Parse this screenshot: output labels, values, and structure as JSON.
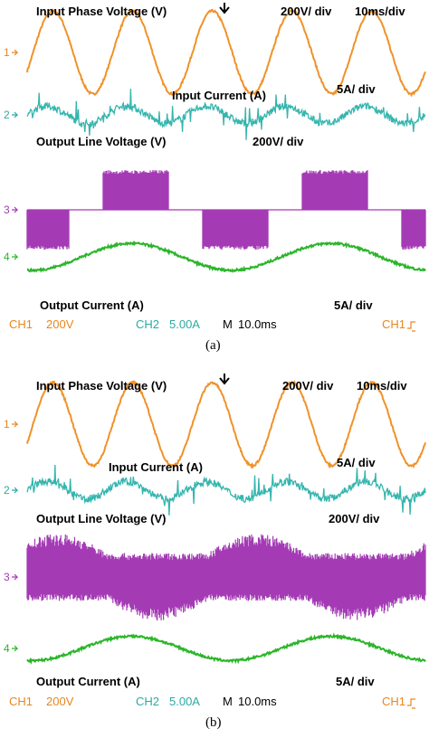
{
  "colors": {
    "ch1": "#F0922A",
    "ch2": "#35B5AE",
    "ch3": "#A43BB5",
    "ch4": "#2BB52A",
    "ch1_label": "#E8861E",
    "ch2_label": "#2EA8A4"
  },
  "panels": [
    {
      "caption": "(a)",
      "labels": {
        "input_phase_voltage": "Input Phase Voltage (V)",
        "scale_ch1": "200V/ div",
        "timebase": "10ms/div",
        "input_current": "Input Current (A)",
        "scale_ch2": "5A/ div",
        "output_line_voltage": "Output Line Voltage (V)",
        "scale_ch3": "200V/ div",
        "output_current": "Output Current (A)",
        "scale_ch4": "5A/ div"
      },
      "footer": {
        "ch1": "CH1",
        "ch1_scale": "200V",
        "ch2": "CH2",
        "ch2_scale": "5.00A",
        "mode": "M",
        "timebase": "10.0ms",
        "trigger_ch": "CH1",
        "trigger_icon": "rising-edge-icon"
      }
    },
    {
      "caption": "(b)",
      "labels": {
        "input_phase_voltage": "Input Phase Voltage (V)",
        "scale_ch1": "200V/ div",
        "timebase": "10ms/div",
        "input_current": "Input Current (A)",
        "scale_ch2": "5A/ div",
        "output_line_voltage": "Output Line Voltage (V)",
        "scale_ch3": "200V/ div",
        "output_current": "Output Current (A)",
        "scale_ch4": "5A/ div"
      },
      "footer": {
        "ch1": "CH1",
        "ch1_scale": "200V",
        "ch2": "CH2",
        "ch2_scale": "5.00A",
        "mode": "M",
        "timebase": "10.0ms",
        "trigger_ch": "CH1",
        "trigger_icon": "rising-edge-icon"
      }
    }
  ],
  "channel_markers": [
    "1",
    "2",
    "3",
    "4"
  ],
  "chart_data": [
    {
      "type": "line",
      "panel": "(a)",
      "x_unit": "ms",
      "time_per_div": 10,
      "divisions": 10,
      "xlim": [
        0,
        100
      ],
      "series": [
        {
          "name": "Input Phase Voltage (V)",
          "channel": 1,
          "shape": "sine",
          "frequency_hz": 50,
          "amplitude_div": 1.7,
          "volts_per_div": 200
        },
        {
          "name": "Input Current (A)",
          "channel": 2,
          "shape": "sine_noisy",
          "frequency_hz": 50,
          "amplitude_div": 0.35,
          "amps_per_div": 5
        },
        {
          "name": "Output Line Voltage (V)",
          "channel": 3,
          "shape": "six_step_pwm",
          "frequency_hz": 20,
          "amplitude_div": 1.6,
          "volts_per_div": 200
        },
        {
          "name": "Output Current (A)",
          "channel": 4,
          "shape": "sine",
          "frequency_hz": 20,
          "amplitude_div": 0.55,
          "amps_per_div": 5
        }
      ]
    },
    {
      "type": "line",
      "panel": "(b)",
      "x_unit": "ms",
      "time_per_div": 10,
      "divisions": 10,
      "xlim": [
        0,
        100
      ],
      "series": [
        {
          "name": "Input Phase Voltage (V)",
          "channel": 1,
          "shape": "sine",
          "frequency_hz": 50,
          "amplitude_div": 1.7,
          "volts_per_div": 200
        },
        {
          "name": "Input Current (A)",
          "channel": 2,
          "shape": "sine_noisy",
          "frequency_hz": 50,
          "amplitude_div": 0.35,
          "amps_per_div": 5
        },
        {
          "name": "Output Line Voltage (V)",
          "channel": 3,
          "shape": "svm_pwm",
          "frequency_hz": 20,
          "amplitude_div": 1.7,
          "volts_per_div": 200
        },
        {
          "name": "Output Current (A)",
          "channel": 4,
          "shape": "sine",
          "frequency_hz": 20,
          "amplitude_div": 0.5,
          "amps_per_div": 5
        }
      ]
    }
  ]
}
